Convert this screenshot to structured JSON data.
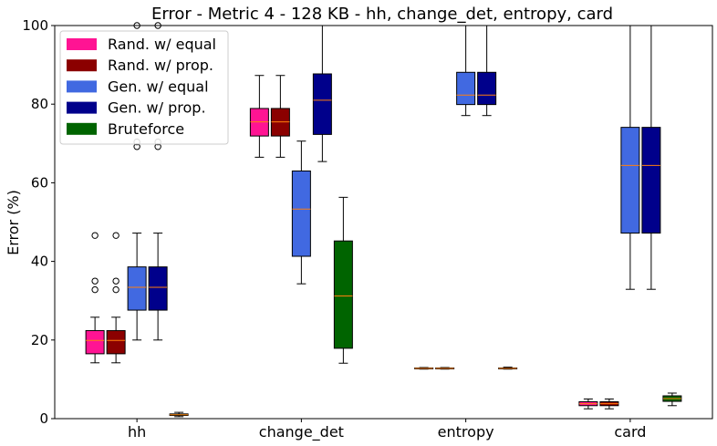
{
  "chart_data": {
    "type": "boxplot",
    "title": "Error - Metric 4 - 128 KB - hh, change_det, entropy, card",
    "xlabel": "",
    "ylabel": "Error (%)",
    "ylim": [
      0,
      100
    ],
    "yticks": [
      0,
      20,
      40,
      60,
      80,
      100
    ],
    "grid": false,
    "legend_position": "top-left",
    "categories": [
      "hh",
      "change_det",
      "entropy",
      "card"
    ],
    "series": [
      {
        "name": "Rand. w/ equal",
        "color": "#ff1493",
        "boxes": [
          {
            "whislo": 14.2,
            "q1": 16.5,
            "med": 19.9,
            "q3": 22.4,
            "whishi": 25.8,
            "fliers": [
              32.8,
              35.0,
              46.6
            ]
          },
          {
            "whislo": 66.5,
            "q1": 71.9,
            "med": 75.5,
            "q3": 78.9,
            "whishi": 87.3,
            "fliers": []
          },
          {
            "whislo": 12.6,
            "q1": 12.7,
            "med": 12.8,
            "q3": 12.9,
            "whishi": 13.0,
            "fliers": []
          },
          {
            "whislo": 2.5,
            "q1": 3.3,
            "med": 3.8,
            "q3": 4.3,
            "whishi": 5.0,
            "fliers": []
          }
        ]
      },
      {
        "name": "Rand. w/ prop.",
        "color": "#8b0000",
        "boxes": [
          {
            "whislo": 14.2,
            "q1": 16.5,
            "med": 19.9,
            "q3": 22.4,
            "whishi": 25.8,
            "fliers": [
              32.8,
              35.0,
              46.6
            ]
          },
          {
            "whislo": 66.5,
            "q1": 71.9,
            "med": 75.5,
            "q3": 78.9,
            "whishi": 87.3,
            "fliers": []
          },
          {
            "whislo": 12.6,
            "q1": 12.7,
            "med": 12.8,
            "q3": 12.9,
            "whishi": 13.0,
            "fliers": []
          },
          {
            "whislo": 2.5,
            "q1": 3.3,
            "med": 3.8,
            "q3": 4.3,
            "whishi": 5.0,
            "fliers": []
          }
        ]
      },
      {
        "name": "Gen. w/ equal",
        "color": "#4169e1",
        "boxes": [
          {
            "whislo": 20.0,
            "q1": 27.6,
            "med": 33.4,
            "q3": 38.6,
            "whishi": 47.2,
            "fliers": [
              69.2,
              70.4,
              100.0
            ]
          },
          {
            "whislo": 34.3,
            "q1": 41.3,
            "med": 53.3,
            "q3": 63.0,
            "whishi": 70.6,
            "fliers": []
          },
          {
            "whislo": 77.1,
            "q1": 79.9,
            "med": 82.3,
            "q3": 88.1,
            "whishi": 100.0,
            "fliers": []
          },
          {
            "whislo": 32.9,
            "q1": 47.2,
            "med": 64.4,
            "q3": 74.1,
            "whishi": 100.0,
            "fliers": []
          }
        ]
      },
      {
        "name": "Gen. w/ prop.",
        "color": "#00008b",
        "boxes": [
          {
            "whislo": 20.0,
            "q1": 27.6,
            "med": 33.4,
            "q3": 38.6,
            "whishi": 47.2,
            "fliers": [
              69.2,
              70.4,
              100.0
            ]
          },
          {
            "whislo": 65.4,
            "q1": 72.3,
            "med": 81.0,
            "q3": 87.7,
            "whishi": 100.0,
            "fliers": []
          },
          {
            "whislo": 77.1,
            "q1": 79.9,
            "med": 82.3,
            "q3": 88.1,
            "whishi": 100.0,
            "fliers": []
          },
          {
            "whislo": 32.9,
            "q1": 47.2,
            "med": 64.4,
            "q3": 74.1,
            "whishi": 100.0,
            "fliers": []
          }
        ]
      },
      {
        "name": "Bruteforce",
        "color": "#006400",
        "boxes": [
          {
            "whislo": 0.5,
            "q1": 0.8,
            "med": 1.0,
            "q3": 1.2,
            "whishi": 1.6,
            "fliers": []
          },
          {
            "whislo": 14.1,
            "q1": 17.9,
            "med": 31.2,
            "q3": 45.2,
            "whishi": 56.3,
            "fliers": []
          },
          {
            "whislo": 12.6,
            "q1": 12.7,
            "med": 12.8,
            "q3": 12.9,
            "whishi": 13.1,
            "fliers": []
          },
          {
            "whislo": 3.3,
            "q1": 4.4,
            "med": 5.1,
            "q3": 5.8,
            "whishi": 6.5,
            "fliers": []
          }
        ]
      }
    ],
    "median_color": "#ff7f0e"
  }
}
